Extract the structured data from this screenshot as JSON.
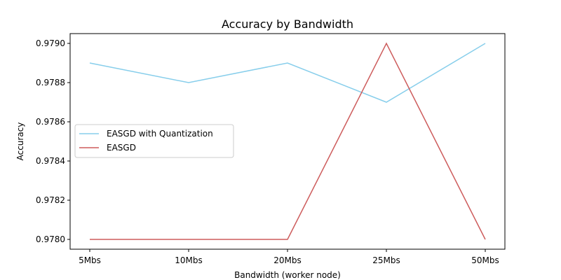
{
  "chart_data": {
    "type": "line",
    "title": "Accuracy by Bandwidth",
    "xlabel": "Bandwidth (worker node)",
    "ylabel": "Accuracy",
    "categories": [
      "5Mbs",
      "10Mbs",
      "20Mbs",
      "25Mbs",
      "50Mbs"
    ],
    "ylim": [
      0.97795,
      0.97905
    ],
    "yticks": [
      "0.9780",
      "0.9782",
      "0.9784",
      "0.9786",
      "0.9788",
      "0.9790"
    ],
    "grid": false,
    "legend_position": "center-left",
    "series": [
      {
        "name": "EASGD with Quantization",
        "color": "#87ceeb",
        "values": [
          0.9789,
          0.9788,
          0.9789,
          0.9787,
          0.979
        ]
      },
      {
        "name": "EASGD",
        "color": "#cd5c5c",
        "values": [
          0.978,
          0.978,
          0.978,
          0.979,
          0.978
        ]
      }
    ]
  }
}
